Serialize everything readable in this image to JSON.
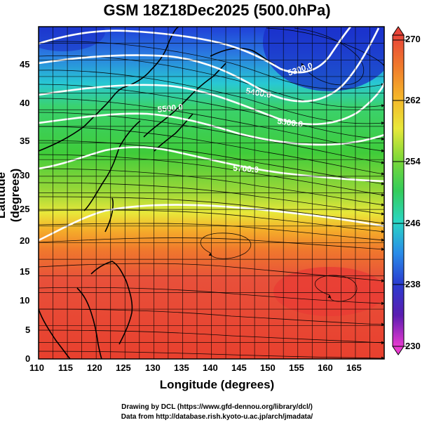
{
  "title": "GSM 18Z18Dec2025 (500.0hPa)",
  "axes": {
    "xlabel": "Longitude (degrees)",
    "ylabel": "Latitude  (degrees)",
    "xticks": [
      "110",
      "115",
      "120",
      "125",
      "130",
      "135",
      "140",
      "145",
      "150",
      "155",
      "160",
      "165"
    ],
    "yticks": [
      "0",
      "5",
      "10",
      "15",
      "20",
      "25",
      "30",
      "35",
      "40",
      "45"
    ]
  },
  "colorbar": {
    "ticks": [
      "270",
      "262",
      "254",
      "246",
      "238",
      "230"
    ],
    "colors": [
      "#e8453a",
      "#f07a2c",
      "#f5b52a",
      "#f5e83a",
      "#b8e838",
      "#3ccf38",
      "#2ad69c",
      "#2ec8e8",
      "#2a8ce8",
      "#2a4cd8",
      "#3a1ca8",
      "#a21cb8",
      "#e83ad0"
    ]
  },
  "contours": [
    {
      "label": "5300.0"
    },
    {
      "label": "5400.0"
    },
    {
      "label": "5500.0"
    },
    {
      "label": "5500.0"
    },
    {
      "label": "5700.0"
    }
  ],
  "credits": {
    "line1": "Drawing by DCL (https://www.gfd-dennou.org/library/dcl/)",
    "line2": "Data from http://database.rish.kyoto-u.ac.jp/arch/jmadata/"
  },
  "chart_data": {
    "type": "heatmap",
    "title": "GSM 18Z18Dec2025 (500.0hPa)",
    "xlabel": "Longitude (degrees)",
    "ylabel": "Latitude  (degrees)",
    "xlim": [
      110,
      170
    ],
    "ylim": [
      0,
      50
    ],
    "colorbar_range": [
      230,
      270
    ],
    "contour_levels": [
      5300,
      5400,
      5500,
      5700
    ],
    "streamlines": true,
    "grid": true
  }
}
